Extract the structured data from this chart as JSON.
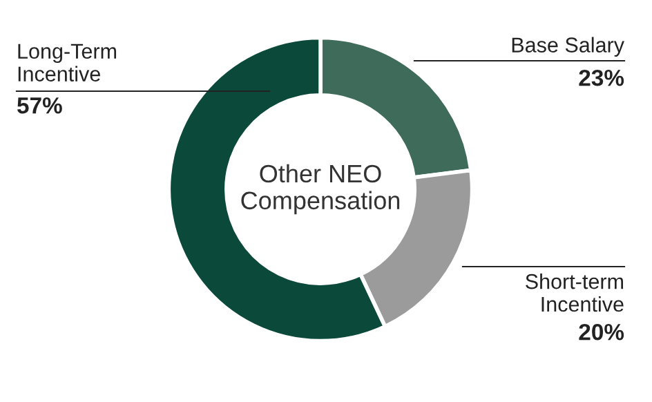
{
  "chart_data": {
    "type": "donut",
    "title": "Other NEO Compensation",
    "categories": [
      "Base Salary",
      "Short-term Incentive",
      "Long-Term Incentive"
    ],
    "values": [
      23,
      20,
      57
    ],
    "colors": [
      "#3f6b5b",
      "#9b9b9b",
      "#0b4a3b"
    ],
    "value_labels": [
      "23%",
      "20%",
      "57%"
    ]
  }
}
